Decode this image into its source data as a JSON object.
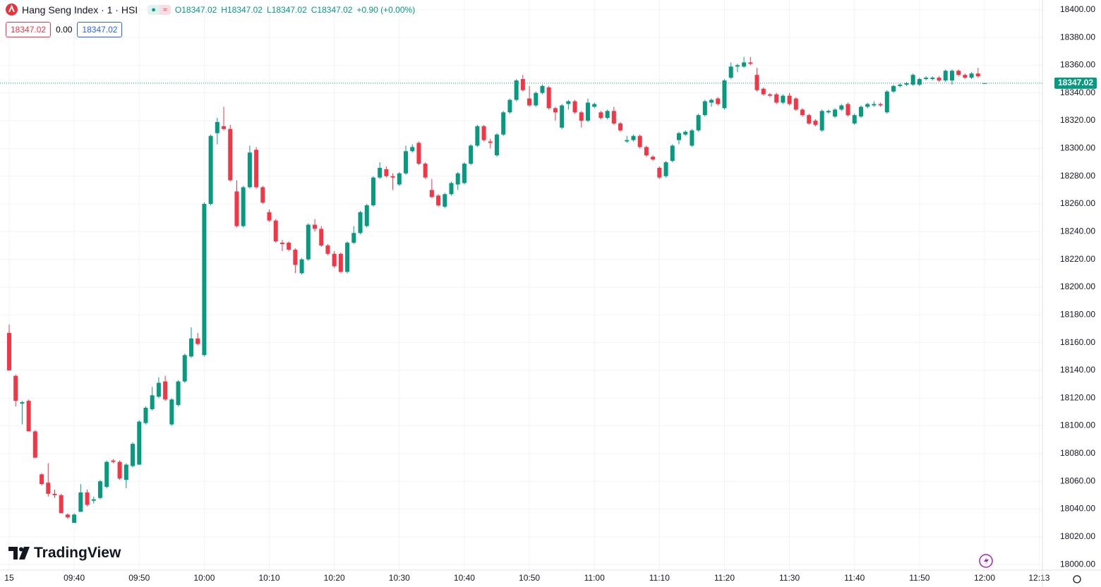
{
  "chart_data": {
    "type": "candlestick",
    "title": "Hang Seng Index · 1 · HSI",
    "legend_open": "O18347.02",
    "legend_high": "H18347.02",
    "legend_low": "L18347.02",
    "legend_close": "C18347.02",
    "legend_change": "+0.90 (+0.00%)",
    "badge_bid": "18347.02",
    "badge_spread": "0.00",
    "badge_ask": "18347.02",
    "logo": "TradingView",
    "up_color": "#089981",
    "down_color": "#f23645",
    "last_price": {
      "value": 18347.02,
      "label": "18347.02"
    },
    "open": [
      18167,
      18136,
      18116,
      18118,
      18096,
      18065,
      18059,
      18051,
      18050,
      18036,
      18030,
      18038,
      18052,
      18046,
      18048,
      18056,
      18075,
      18074,
      18061,
      18071,
      18072,
      18102,
      18112,
      18121,
      18132,
      18101,
      18115,
      18132,
      18150,
      18163,
      18151,
      18260,
      18311,
      18316,
      18314,
      18269,
      18244,
      18272,
      18299,
      18272,
      18254,
      18248,
      18232,
      18232,
      18227,
      18210,
      18220,
      18245,
      18242,
      18230,
      18224,
      18224,
      18211,
      18232,
      18239,
      18244,
      18259,
      18279,
      18285,
      18280,
      18274,
      18282,
      18298,
      18304,
      18289,
      18270,
      18266,
      18258,
      18267,
      18274,
      18275,
      18289,
      18302,
      18316,
      18305,
      18295,
      18310,
      18326,
      18335,
      18350,
      18336,
      18331,
      18340,
      18344,
      18329,
      18315,
      18332,
      18334,
      18326,
      18320,
      18330,
      18326,
      18322,
      18327,
      18318,
      18305,
      18306,
      18309,
      18301,
      18294,
      18286,
      18280,
      18291,
      18306,
      18310,
      18302,
      18313,
      18324,
      18333,
      18336,
      18329,
      18351,
      18359,
      18359,
      18362,
      18353,
      18343,
      18339,
      18339,
      18333,
      18338,
      18336,
      18328,
      18324,
      18320,
      18313,
      18326,
      18323,
      18328,
      18332,
      18318,
      18323,
      18330,
      18331,
      18332,
      18326,
      18341,
      18345,
      18346,
      18346,
      18346,
      18350,
      18350,
      18351,
      18349,
      18349,
      18356,
      18353,
      18351,
      18354,
      18347.02
    ],
    "high": [
      18173,
      18137,
      18118,
      18119,
      18097,
      18066,
      18073,
      18054,
      18051,
      18037,
      18037,
      18058,
      18054,
      18049,
      18061,
      18075,
      18076,
      18075,
      18073,
      18088,
      18104,
      18114,
      18128,
      18135,
      18136,
      18120,
      18133,
      18152,
      18171,
      18167,
      18261,
      18310,
      18322,
      18330,
      18317,
      18277,
      18273,
      18302,
      18301,
      18273,
      18256,
      18249,
      18234,
      18233,
      18228,
      18221,
      18246,
      18249,
      18244,
      18231,
      18226,
      18225,
      18233,
      18244,
      18255,
      18260,
      18280,
      18290,
      18287,
      18282,
      18283,
      18302,
      18303,
      18305,
      18290,
      18278,
      18267,
      18268,
      18276,
      18283,
      18290,
      18303,
      18317,
      18317,
      18307,
      18311,
      18327,
      18336,
      18350,
      18353,
      18345,
      18341,
      18346,
      18345,
      18330,
      18332,
      18335,
      18335,
      18327,
      18336,
      18333,
      18327,
      18328,
      18330,
      18319,
      18309,
      18310,
      18310,
      18302,
      18295,
      18287,
      18291,
      18303,
      18312,
      18313,
      18314,
      18325,
      18335,
      18336,
      18337,
      18350,
      18362,
      18361,
      18366,
      18366,
      18358,
      18344,
      18340,
      18340,
      18339,
      18340,
      18337,
      18329,
      18325,
      18321,
      18328,
      18328,
      18329,
      18332,
      18333,
      18325,
      18331,
      18333,
      18334,
      18333,
      18342,
      18346,
      18347,
      18348,
      18354,
      18351,
      18352,
      18352,
      18352,
      18357,
      18357,
      18357,
      18354,
      18355,
      18358,
      18347.02
    ],
    "low": [
      18140,
      18114,
      18101,
      18096,
      18077,
      18057,
      18049,
      18048,
      18037,
      18033,
      18030,
      18038,
      18042,
      18044,
      18047,
      18055,
      18073,
      18061,
      18055,
      18070,
      18072,
      18101,
      18111,
      18120,
      18118,
      18100,
      18114,
      18131,
      18149,
      18158,
      18150,
      18259,
      18303,
      18313,
      18276,
      18243,
      18243,
      18271,
      18271,
      18260,
      18247,
      18232,
      18226,
      18226,
      18210,
      18209,
      18219,
      18240,
      18229,
      18223,
      18214,
      18210,
      18210,
      18231,
      18238,
      18243,
      18258,
      18278,
      18279,
      18270,
      18273,
      18281,
      18297,
      18288,
      18278,
      18264,
      18258,
      18257,
      18266,
      18270,
      18274,
      18288,
      18301,
      18305,
      18300,
      18294,
      18309,
      18325,
      18334,
      18341,
      18330,
      18330,
      18339,
      18328,
      18320,
      18314,
      18328,
      18325,
      18315,
      18319,
      18329,
      18321,
      18321,
      18317,
      18312,
      18304,
      18305,
      18300,
      18294,
      18291,
      18278,
      18279,
      18290,
      18303,
      18309,
      18301,
      18312,
      18323,
      18330,
      18331,
      18328,
      18350,
      18355,
      18358,
      18360,
      18341,
      18338,
      18337,
      18332,
      18332,
      18331,
      18327,
      18323,
      18317,
      18316,
      18312,
      18325,
      18322,
      18327,
      18323,
      18317,
      18322,
      18329,
      18330,
      18330,
      18325,
      18340,
      18344,
      18345,
      18345,
      18345,
      18349,
      18349,
      18348,
      18348,
      18346,
      18352,
      18350,
      18350,
      18351,
      18347.02
    ],
    "close": [
      18140,
      18118,
      18117,
      18096,
      18077,
      18058,
      18051,
      18050,
      18037,
      18034,
      18036,
      18052,
      18043,
      18047,
      18060,
      18074,
      18074,
      18062,
      18072,
      18087,
      18103,
      18113,
      18122,
      18131,
      18119,
      18119,
      18132,
      18151,
      18163,
      18159,
      18260,
      18309,
      18319,
      18314,
      18277,
      18244,
      18272,
      18297,
      18272,
      18261,
      18248,
      18233,
      18231,
      18227,
      18216,
      18220,
      18245,
      18242,
      18230,
      18224,
      18215,
      18211,
      18232,
      18239,
      18254,
      18259,
      18279,
      18286,
      18280,
      18279,
      18282,
      18298,
      18301,
      18289,
      18279,
      18265,
      18259,
      18267,
      18275,
      18282,
      18289,
      18302,
      18316,
      18306,
      18304,
      18310,
      18326,
      18335,
      18349,
      18342,
      18331,
      18340,
      18345,
      18329,
      18326,
      18331,
      18334,
      18326,
      18320,
      18333,
      18332,
      18322,
      18327,
      18318,
      18313,
      18306,
      18309,
      18301,
      18295,
      18292,
      18279,
      18290,
      18302,
      18311,
      18312,
      18313,
      18324,
      18334,
      18335,
      18332,
      18349,
      18359,
      18360,
      18362,
      18361,
      18342,
      18339,
      18338,
      18333,
      18338,
      18332,
      18328,
      18324,
      18318,
      18317,
      18327,
      18327,
      18328,
      18331,
      18324,
      18324,
      18330,
      18332,
      18332,
      18331,
      18341,
      18345,
      18346,
      18347,
      18353,
      18350,
      18351,
      18351,
      18349,
      18356,
      18356,
      18353,
      18351,
      18354,
      18352,
      18347.02
    ],
    "xlim": [
      -1.41,
      158.9
    ],
    "xticks": [
      {
        "value": 0,
        "label": "15"
      },
      {
        "value": 10,
        "label": "09:40"
      },
      {
        "value": 20,
        "label": "09:50"
      },
      {
        "value": 30,
        "label": "10:00"
      },
      {
        "value": 40,
        "label": "10:10"
      },
      {
        "value": 50,
        "label": "10:20"
      },
      {
        "value": 60,
        "label": "10:30"
      },
      {
        "value": 70,
        "label": "10:40"
      },
      {
        "value": 80,
        "label": "10:50"
      },
      {
        "value": 90,
        "label": "11:00"
      },
      {
        "value": 100,
        "label": "11:10"
      },
      {
        "value": 110,
        "label": "11:20"
      },
      {
        "value": 120,
        "label": "11:30"
      },
      {
        "value": 130,
        "label": "11:40"
      },
      {
        "value": 140,
        "label": "11:50"
      },
      {
        "value": 150,
        "label": "12:00"
      },
      {
        "value": 158.4,
        "label": "12:13"
      }
    ],
    "ylim": [
      17996,
      18407
    ],
    "yticks": [
      {
        "value": 18000,
        "label": "18000.00"
      },
      {
        "value": 18020,
        "label": "18020.00"
      },
      {
        "value": 18040,
        "label": "18040.00"
      },
      {
        "value": 18060,
        "label": "18060.00"
      },
      {
        "value": 18080,
        "label": "18080.00"
      },
      {
        "value": 18100,
        "label": "18100.00"
      },
      {
        "value": 18120,
        "label": "18120.00"
      },
      {
        "value": 18140,
        "label": "18140.00"
      },
      {
        "value": 18160,
        "label": "18160.00"
      },
      {
        "value": 18180,
        "label": "18180.00"
      },
      {
        "value": 18200,
        "label": "18200.00"
      },
      {
        "value": 18220,
        "label": "18220.00"
      },
      {
        "value": 18240,
        "label": "18240.00"
      },
      {
        "value": 18260,
        "label": "18260.00"
      },
      {
        "value": 18280,
        "label": "18280.00"
      },
      {
        "value": 18300,
        "label": "18300.00"
      },
      {
        "value": 18320,
        "label": "18320.00"
      },
      {
        "value": 18340,
        "label": "18340.00"
      },
      {
        "value": 18360,
        "label": "18360.00"
      },
      {
        "value": 18380,
        "label": "18380.00"
      },
      {
        "value": 18400,
        "label": "18400.00"
      }
    ],
    "grid": true
  }
}
